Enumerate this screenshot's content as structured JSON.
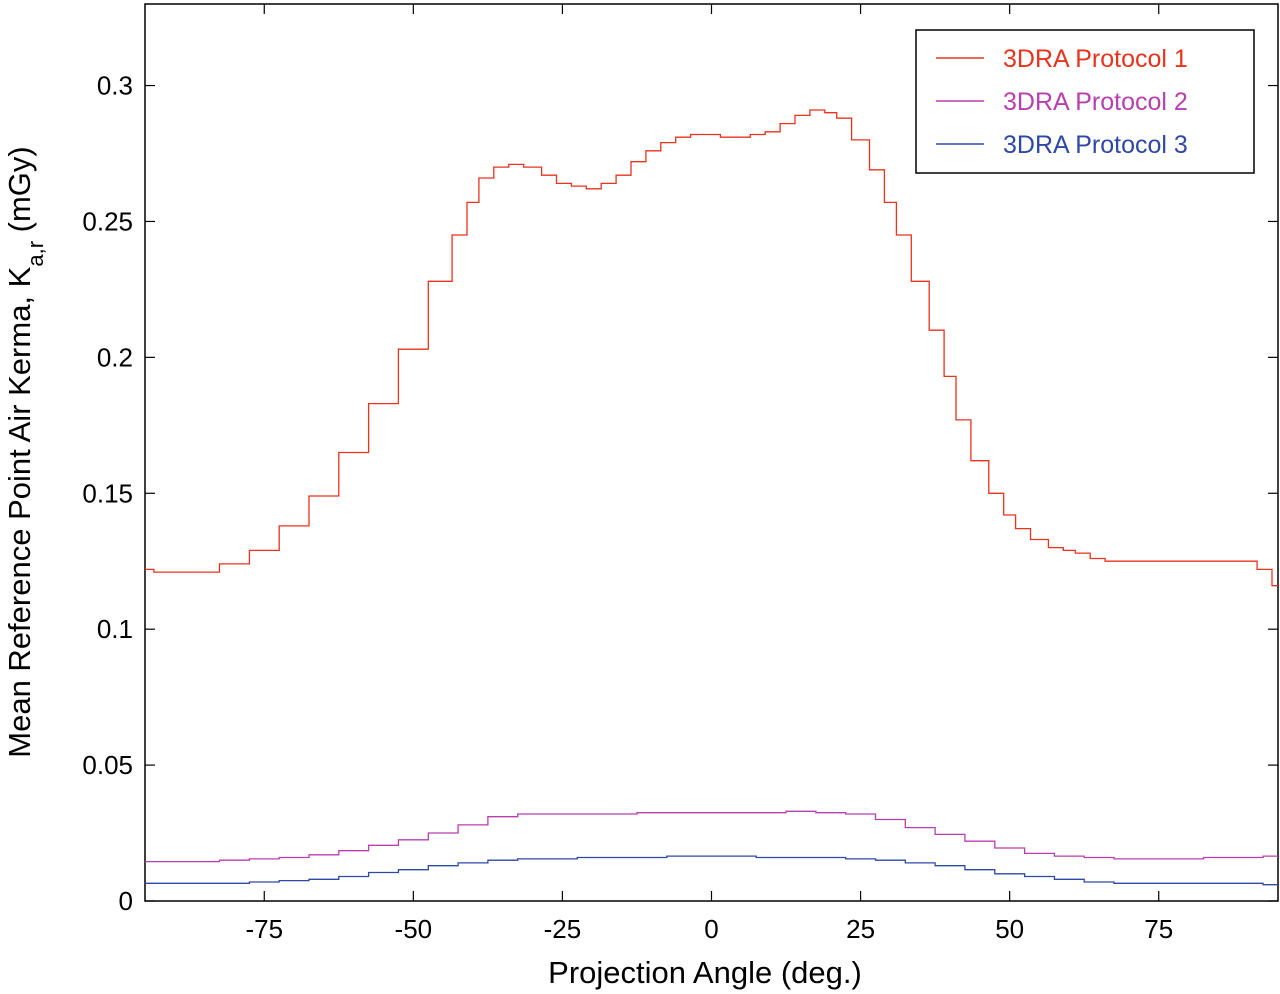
{
  "chart_data": {
    "type": "line",
    "title": "",
    "xlabel": "Projection Angle (deg.)",
    "ylabel": "Mean Reference Point Air Kerma, K",
    "ylabel_subscript": "a,r",
    "ylabel_unit": " (mGy)",
    "xlim": [
      -95,
      95
    ],
    "ylim": [
      0,
      0.33
    ],
    "xticks": [
      -75,
      -50,
      -25,
      0,
      25,
      50,
      75
    ],
    "xtick_labels": [
      "-75",
      "-50",
      "-25",
      "0",
      "25",
      "50",
      "75"
    ],
    "yticks": [
      0,
      0.05,
      0.1,
      0.15,
      0.2,
      0.25,
      0.3
    ],
    "ytick_labels": [
      "0",
      "0.05",
      "0.1",
      "0.15",
      "0.2",
      "0.25",
      "0.3"
    ],
    "grid": false,
    "legend_position": "top-right",
    "series": [
      {
        "name": "3DRA Protocol 1",
        "color": "#e8331e",
        "x": [
          -95,
          -92,
          -90,
          -85,
          -80,
          -75,
          -70,
          -65,
          -60,
          -55,
          -50,
          -45,
          -42,
          -40,
          -38,
          -35,
          -33,
          -30,
          -27,
          -25,
          -22,
          -20,
          -17,
          -15,
          -12,
          -10,
          -7,
          -5,
          -2,
          0,
          3,
          5,
          8,
          10,
          13,
          15,
          18,
          20,
          22,
          25,
          28,
          30,
          32,
          35,
          38,
          40,
          42,
          45,
          48,
          50,
          52,
          55,
          58,
          60,
          62,
          65,
          67,
          70,
          75,
          80,
          85,
          90,
          93,
          95
        ],
        "y": [
          0.122,
          0.121,
          0.121,
          0.121,
          0.124,
          0.129,
          0.138,
          0.149,
          0.165,
          0.183,
          0.203,
          0.228,
          0.245,
          0.257,
          0.266,
          0.27,
          0.271,
          0.27,
          0.267,
          0.264,
          0.263,
          0.262,
          0.264,
          0.267,
          0.272,
          0.276,
          0.279,
          0.281,
          0.282,
          0.282,
          0.281,
          0.281,
          0.282,
          0.283,
          0.286,
          0.289,
          0.291,
          0.29,
          0.288,
          0.28,
          0.269,
          0.257,
          0.245,
          0.228,
          0.21,
          0.193,
          0.177,
          0.162,
          0.15,
          0.142,
          0.137,
          0.133,
          0.13,
          0.129,
          0.128,
          0.126,
          0.125,
          0.125,
          0.125,
          0.125,
          0.125,
          0.125,
          0.122,
          0.116
        ]
      },
      {
        "name": "3DRA Protocol 2",
        "color": "#b83fae",
        "x": [
          -95,
          -85,
          -80,
          -75,
          -70,
          -65,
          -60,
          -55,
          -50,
          -45,
          -40,
          -35,
          -30,
          -25,
          -20,
          -15,
          -10,
          -5,
          0,
          5,
          10,
          15,
          20,
          25,
          30,
          35,
          40,
          45,
          50,
          55,
          60,
          65,
          70,
          75,
          80,
          85,
          90,
          95
        ],
        "y": [
          0.0145,
          0.0145,
          0.015,
          0.0155,
          0.016,
          0.017,
          0.0185,
          0.0205,
          0.0225,
          0.025,
          0.028,
          0.031,
          0.032,
          0.032,
          0.032,
          0.032,
          0.0325,
          0.0325,
          0.0325,
          0.0325,
          0.0325,
          0.033,
          0.0325,
          0.032,
          0.03,
          0.027,
          0.0245,
          0.022,
          0.0195,
          0.0175,
          0.0165,
          0.016,
          0.0155,
          0.0155,
          0.0155,
          0.016,
          0.016,
          0.0165
        ]
      },
      {
        "name": "3DRA Protocol 3",
        "color": "#2e48a5",
        "x": [
          -95,
          -85,
          -80,
          -75,
          -70,
          -65,
          -60,
          -55,
          -50,
          -45,
          -40,
          -35,
          -30,
          -25,
          -20,
          -15,
          -10,
          -5,
          0,
          5,
          10,
          15,
          20,
          25,
          30,
          35,
          40,
          45,
          50,
          55,
          60,
          65,
          70,
          75,
          80,
          85,
          90,
          95
        ],
        "y": [
          0.0065,
          0.0065,
          0.0065,
          0.007,
          0.0075,
          0.008,
          0.009,
          0.0105,
          0.0115,
          0.013,
          0.014,
          0.015,
          0.0155,
          0.0155,
          0.016,
          0.016,
          0.016,
          0.0165,
          0.0165,
          0.0165,
          0.016,
          0.016,
          0.016,
          0.0155,
          0.015,
          0.014,
          0.013,
          0.0115,
          0.01,
          0.009,
          0.008,
          0.007,
          0.0065,
          0.0065,
          0.0065,
          0.0065,
          0.0065,
          0.006
        ]
      }
    ]
  }
}
